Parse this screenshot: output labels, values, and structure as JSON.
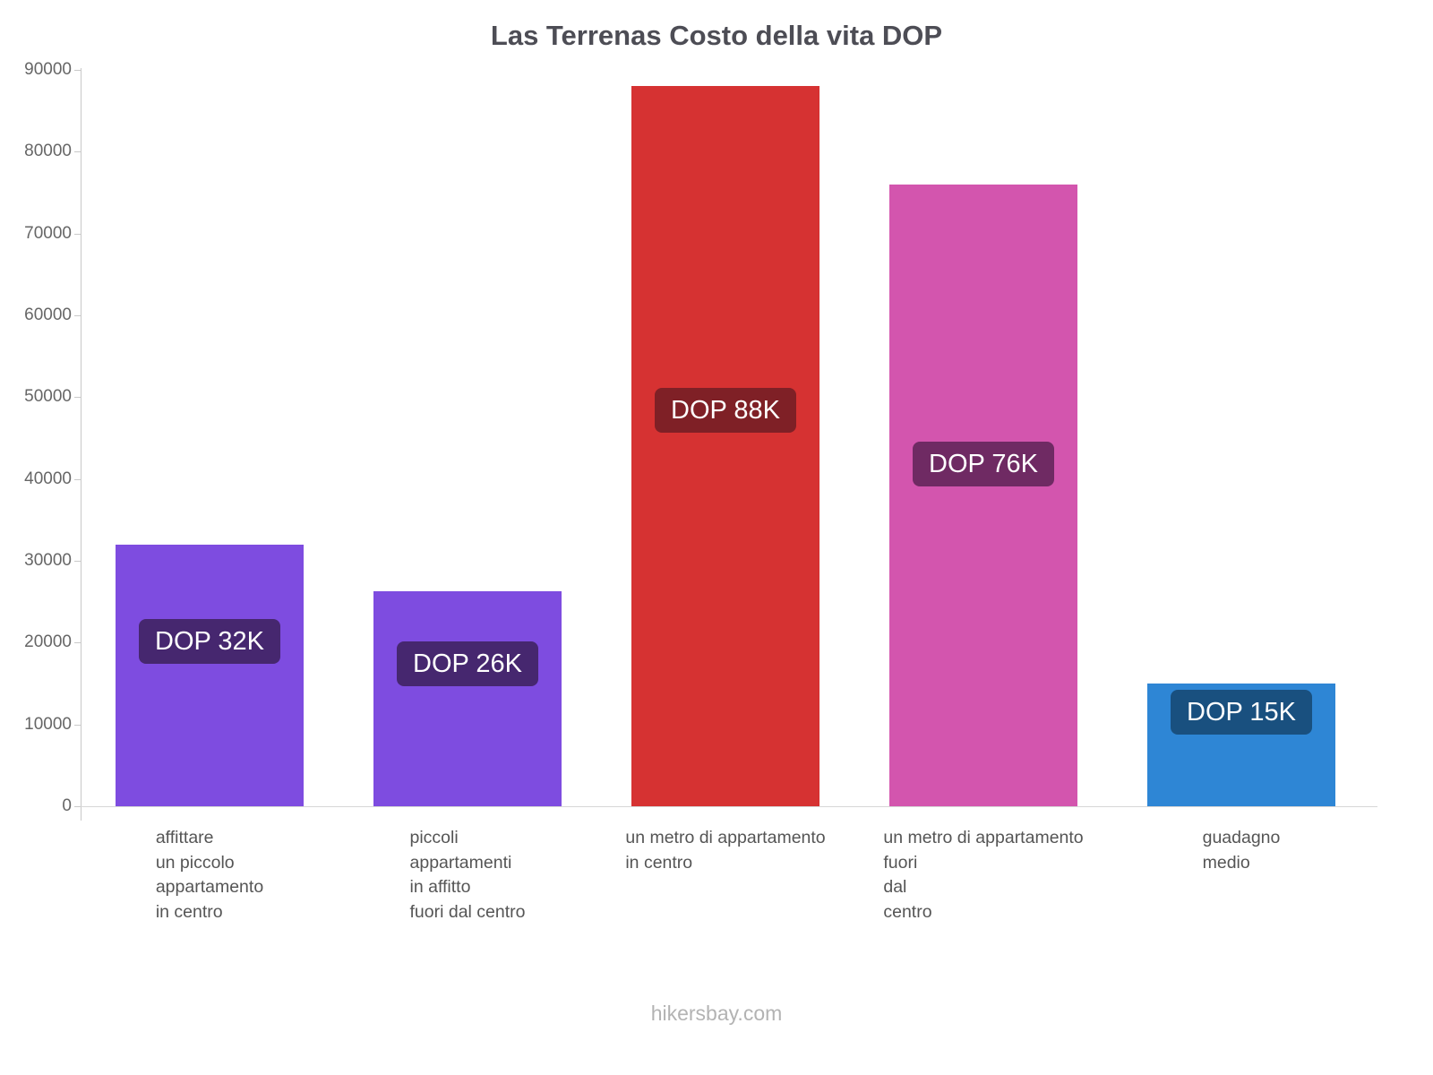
{
  "title": "Las Terrenas Costo della vita DOP",
  "footer": "hikersbay.com",
  "chart_data": {
    "type": "bar",
    "title": "Las Terrenas Costo della vita DOP",
    "currency": "DOP",
    "ylim": [
      0,
      90000
    ],
    "yticks": [
      0,
      10000,
      20000,
      30000,
      40000,
      50000,
      60000,
      70000,
      80000,
      90000
    ],
    "grid": false,
    "legend": "none",
    "categories": [
      "affittare un piccolo appartamento in centro",
      "piccoli appartamenti in affitto fuori dal centro",
      "un metro di appartamento in centro",
      "un metro di appartamento fuori dal centro",
      "guadagno medio"
    ],
    "bars": [
      {
        "category_lines": [
          "affittare",
          "un piccolo",
          "appartamento",
          "in centro"
        ],
        "value": 32000,
        "label": "DOP 32K",
        "color": "#7e4ce0",
        "label_bg": "#46276f",
        "label_pos_frac": 0.63
      },
      {
        "category_lines": [
          "piccoli",
          "appartamenti",
          "in affitto",
          "fuori dal centro"
        ],
        "value": 26300,
        "label": "DOP 26K",
        "color": "#7e4ce0",
        "label_bg": "#46276f",
        "label_pos_frac": 0.66
      },
      {
        "category_lines": [
          "un metro di appartamento",
          "in centro"
        ],
        "value": 88000,
        "label": "DOP 88K",
        "color": "#d63232",
        "label_bg": "#7f2026",
        "label_pos_frac": 0.55
      },
      {
        "category_lines": [
          "un metro di appartamento",
          "fuori",
          "dal",
          "centro"
        ],
        "value": 76000,
        "label": "DOP 76K",
        "color": "#d355ae",
        "label_bg": "#6f2a63",
        "label_pos_frac": 0.55
      },
      {
        "category_lines": [
          "guadagno",
          "medio"
        ],
        "value": 15000,
        "label": "DOP 15K",
        "color": "#2e86d5",
        "label_bg": "#19507f",
        "label_pos_frac": 0.77
      }
    ]
  }
}
